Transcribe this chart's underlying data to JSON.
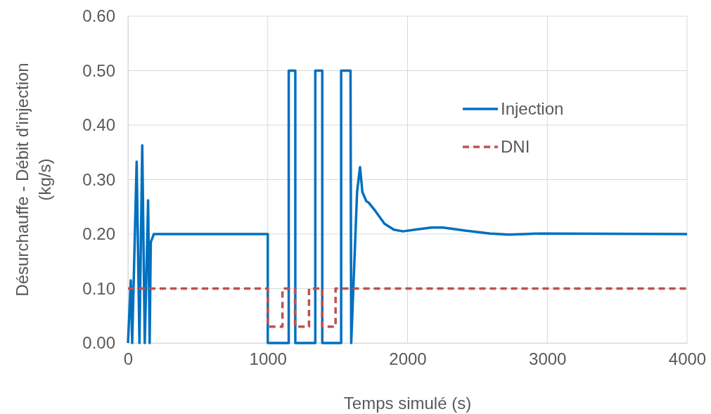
{
  "chart_data": {
    "type": "line",
    "xlabel": "Temps simulé (s)",
    "ylabel": "Désurchauffe - Débit d'injection (kg/s)",
    "xlim": [
      0,
      4000
    ],
    "xticks": [
      0,
      1000,
      2000,
      3000,
      4000
    ],
    "ylim": [
      0,
      0.6
    ],
    "yticks": [
      {
        "value": 0,
        "label": "0.00"
      },
      {
        "value": 0.1,
        "label": "0.10"
      },
      {
        "value": 0.2,
        "label": "0.20"
      },
      {
        "value": 0.3,
        "label": "0.30"
      },
      {
        "value": 0.4,
        "label": "0.40"
      },
      {
        "value": 0.5,
        "label": "0.50"
      },
      {
        "value": 0.6,
        "label": "0.60"
      }
    ],
    "grid": true,
    "legend": "top right",
    "marker": "none",
    "series": [
      {
        "name": "Injection",
        "color": "#0070c0",
        "line_style": "solid",
        "x": [
          0,
          20,
          30,
          62,
          82,
          102,
          120,
          144,
          155,
          163,
          185,
          1000,
          1000,
          1150,
          1150,
          1197,
          1197,
          1340,
          1340,
          1390,
          1390,
          1525,
          1525,
          1592,
          1597,
          1639,
          1660,
          1677,
          1706,
          1721,
          1768,
          1835,
          1902,
          1968,
          2053,
          2170,
          2254,
          2420,
          2590,
          2722,
          2843,
          2943,
          4000
        ],
        "values": [
          0,
          0.115,
          0,
          0.333,
          0,
          0.363,
          0,
          0.262,
          0,
          0.185,
          0.2,
          0.2,
          0,
          0,
          0.5,
          0.5,
          0,
          0,
          0.5,
          0.5,
          0,
          0,
          0.5,
          0.5,
          0,
          0.277,
          0.323,
          0.277,
          0.26,
          0.258,
          0.243,
          0.219,
          0.208,
          0.205,
          0.208,
          0.212,
          0.212,
          0.206,
          0.201,
          0.199,
          0.2,
          0.201,
          0.2
        ]
      },
      {
        "name": "DNI",
        "color": "#c0504d",
        "line_style": "dashed",
        "x": [
          0,
          1000,
          1000,
          1105,
          1105,
          1195,
          1195,
          1295,
          1295,
          1390,
          1390,
          1485,
          1485,
          4000
        ],
        "values": [
          0.1,
          0.1,
          0.03,
          0.03,
          0.1,
          0.1,
          0.03,
          0.03,
          0.1,
          0.1,
          0.03,
          0.03,
          0.1,
          0.1
        ]
      }
    ]
  }
}
